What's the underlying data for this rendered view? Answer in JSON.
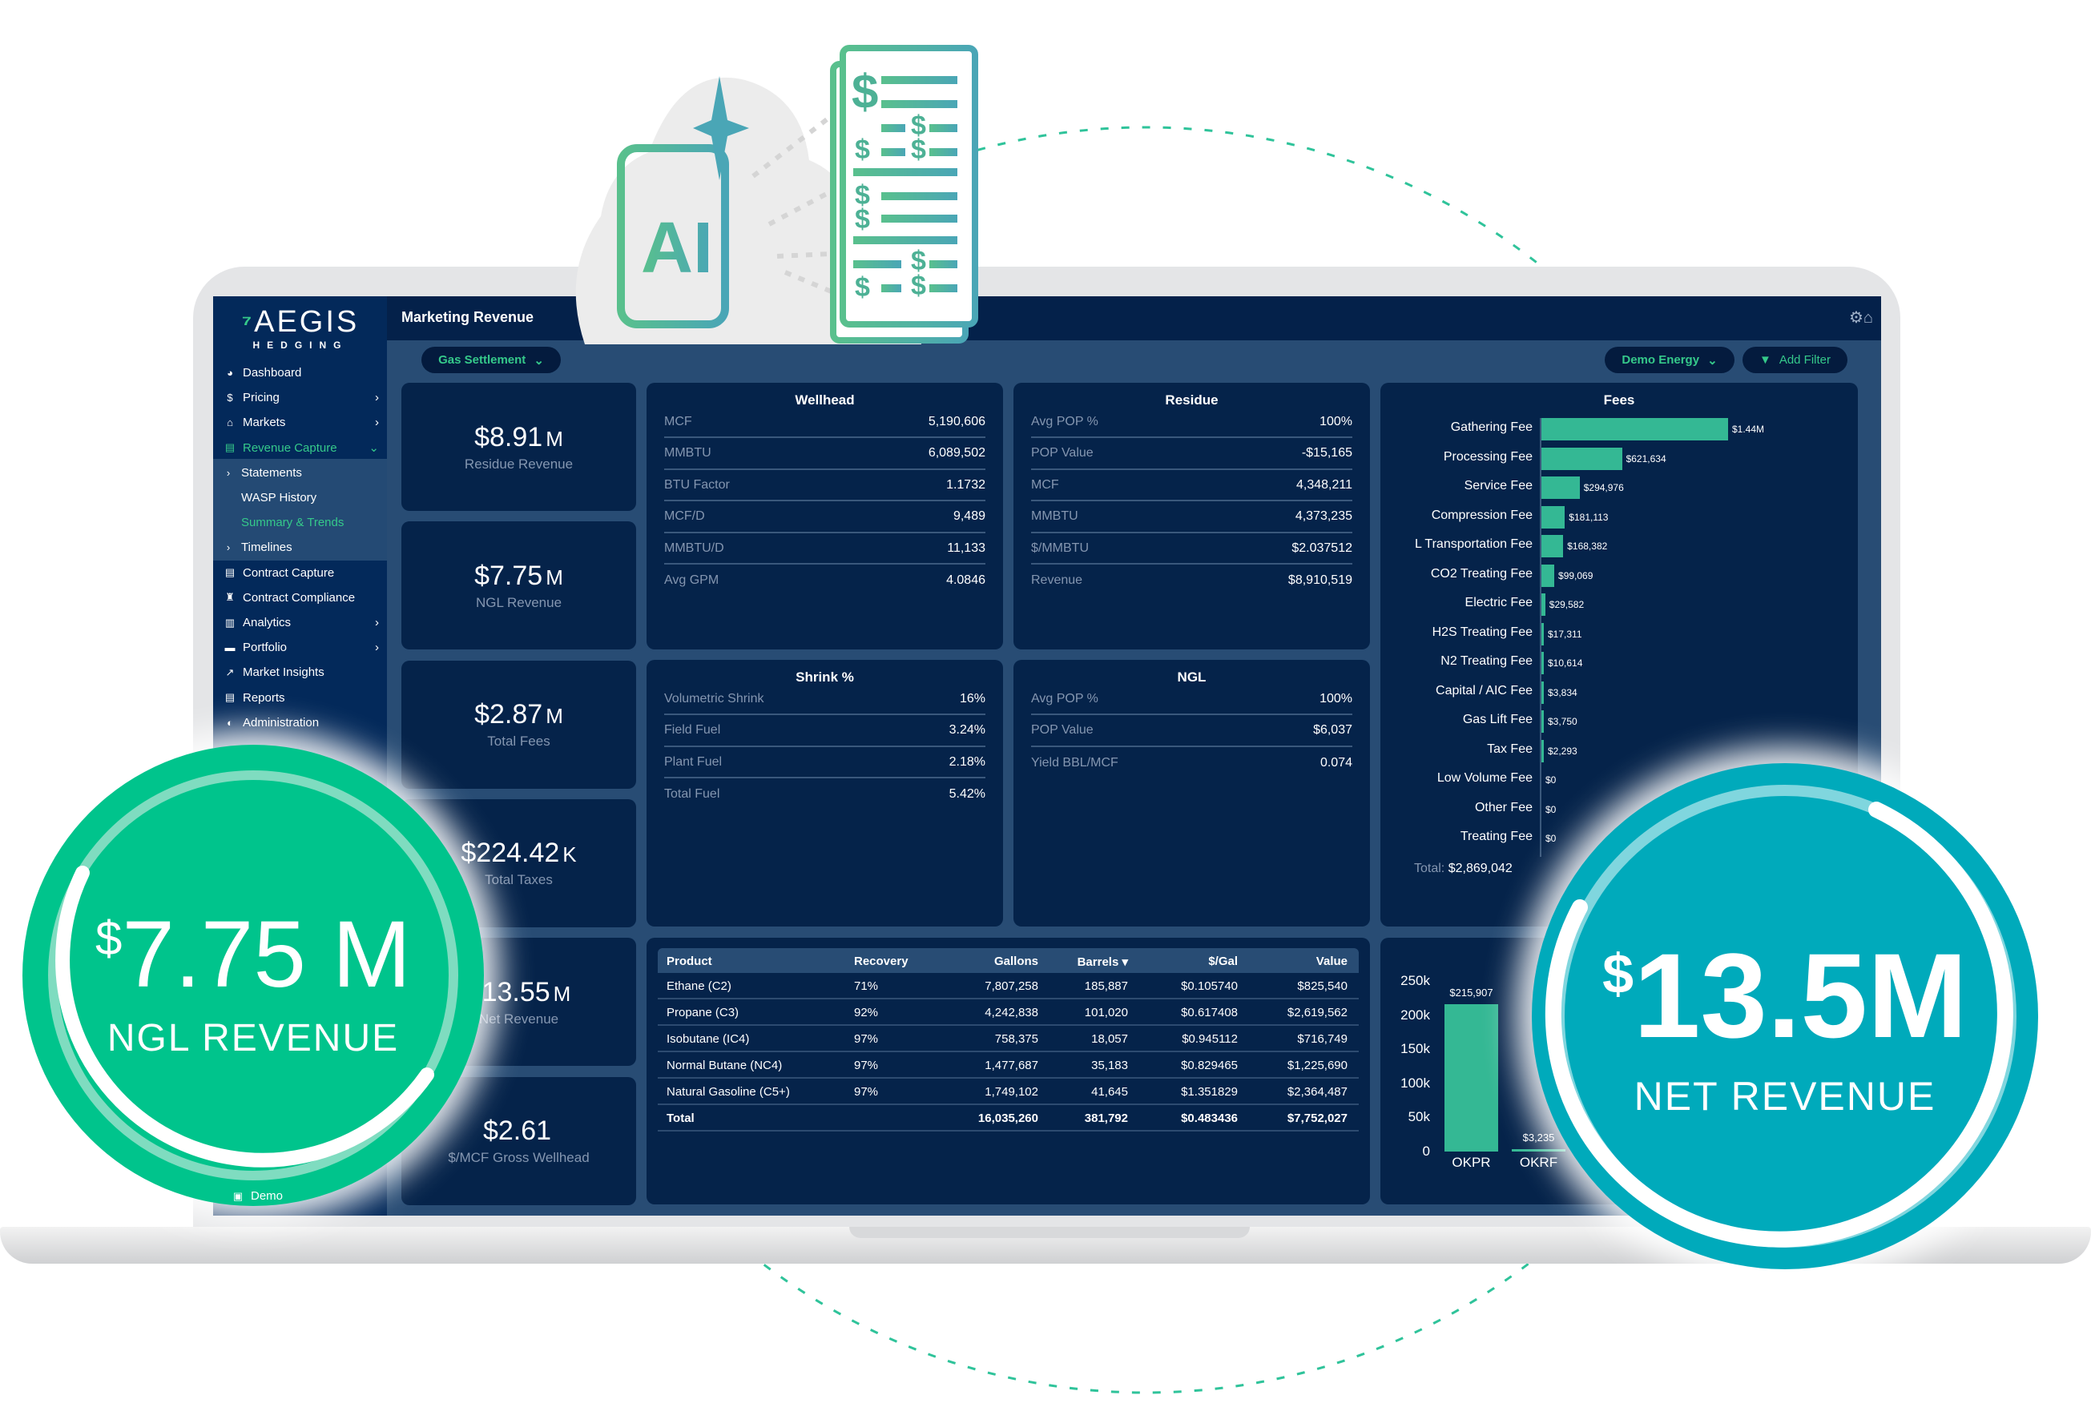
{
  "app": {
    "logo_text": "AEGIS",
    "logo_sub": "HEDGING",
    "page_title": "Marketing Revenue"
  },
  "filters": {
    "settlement": "Gas Settlement",
    "company": "Demo Energy",
    "add_filter": "Add Filter"
  },
  "sidebar": {
    "items": [
      {
        "label": "Dashboard",
        "icon": "dashboard-icon",
        "glyph": "◕",
        "chev": ""
      },
      {
        "label": "Pricing",
        "icon": "dollar-icon",
        "glyph": "$",
        "chev": "›"
      },
      {
        "label": "Markets",
        "icon": "bank-icon",
        "glyph": "⌂",
        "chev": "›"
      },
      {
        "label": "Revenue Capture",
        "icon": "file-dollar-icon",
        "glyph": "▤",
        "chev": "⌄",
        "active": true
      },
      {
        "label": "Statements",
        "sub": true,
        "glyph": "›"
      },
      {
        "label": "WASP History",
        "sub": true,
        "glyph": ""
      },
      {
        "label": "Summary & Trends",
        "sub": true,
        "glyph": "",
        "active": true
      },
      {
        "label": "Timelines",
        "sub": true,
        "glyph": "›"
      },
      {
        "label": "Contract Capture",
        "icon": "contract-icon",
        "glyph": "▤",
        "chev": ""
      },
      {
        "label": "Contract Compliance",
        "icon": "compliance-icon",
        "glyph": "♜",
        "chev": ""
      },
      {
        "label": "Analytics",
        "icon": "analytics-icon",
        "glyph": "▥",
        "chev": "›"
      },
      {
        "label": "Portfolio",
        "icon": "briefcase-icon",
        "glyph": "▬",
        "chev": "›"
      },
      {
        "label": "Market Insights",
        "icon": "line-chart-icon",
        "glyph": "↗",
        "chev": ""
      },
      {
        "label": "Reports",
        "icon": "report-icon",
        "glyph": "▤",
        "chev": ""
      },
      {
        "label": "Administration",
        "icon": "shield-icon",
        "glyph": "◐",
        "chev": ""
      }
    ],
    "bottom_item": "Demo"
  },
  "kpis": [
    {
      "value": "$8.91",
      "unit": "M",
      "label": "Residue Revenue"
    },
    {
      "value": "$7.75",
      "unit": "M",
      "label": "NGL Revenue"
    },
    {
      "value": "$2.87",
      "unit": "M",
      "label": "Total Fees"
    },
    {
      "value": "$224.42",
      "unit": "K",
      "label": "Total Taxes"
    },
    {
      "value": "$13.55",
      "unit": "M",
      "label": "Net Revenue"
    },
    {
      "value": "$2.61",
      "unit": "",
      "label": "$/MCF Gross Wellhead"
    }
  ],
  "panels": {
    "wellhead": {
      "title": "Wellhead",
      "rows": [
        [
          "MCF",
          "5,190,606"
        ],
        [
          "MMBTU",
          "6,089,502"
        ],
        [
          "BTU Factor",
          "1.1732"
        ],
        [
          "MCF/D",
          "9,489"
        ],
        [
          "MMBTU/D",
          "11,133"
        ],
        [
          "Avg GPM",
          "4.0846"
        ]
      ]
    },
    "residue": {
      "title": "Residue",
      "rows": [
        [
          "Avg POP %",
          "100%"
        ],
        [
          "POP Value",
          "-$15,165"
        ],
        [
          "MCF",
          "4,348,211"
        ],
        [
          "MMBTU",
          "4,373,235"
        ],
        [
          "$/MMBTU",
          "$2.037512"
        ],
        [
          "Revenue",
          "$8,910,519"
        ]
      ]
    },
    "shrink": {
      "title": "Shrink %",
      "rows": [
        [
          "Volumetric Shrink",
          "16%"
        ],
        [
          "Field Fuel",
          "3.24%"
        ],
        [
          "Plant Fuel",
          "2.18%"
        ],
        [
          "Total Fuel",
          "5.42%"
        ]
      ]
    },
    "ngl": {
      "title": "NGL",
      "rows": [
        [
          "Avg POP %",
          "100%"
        ],
        [
          "POP Value",
          "$6,037"
        ],
        [
          "Yield BBL/MCF",
          "0.074"
        ]
      ]
    }
  },
  "products": {
    "headers": [
      "Product",
      "Recovery",
      "Gallons",
      "Barrels ▾",
      "$/Gal",
      "Value"
    ],
    "rows": [
      [
        "Ethane (C2)",
        "71%",
        "7,807,258",
        "185,887",
        "$0.105740",
        "$825,540"
      ],
      [
        "Propane (C3)",
        "92%",
        "4,242,838",
        "101,020",
        "$0.617408",
        "$2,619,562"
      ],
      [
        "Isobutane (IC4)",
        "97%",
        "758,375",
        "18,057",
        "$0.945112",
        "$716,749"
      ],
      [
        "Normal Butane (NC4)",
        "97%",
        "1,477,687",
        "35,183",
        "$0.829465",
        "$1,225,690"
      ],
      [
        "Natural Gasoline (C5+)",
        "97%",
        "1,749,102",
        "41,645",
        "$1.351829",
        "$2,364,487"
      ]
    ],
    "total": [
      "Total",
      "",
      "16,035,260",
      "381,792",
      "$0.483436",
      "$7,752,027"
    ]
  },
  "chart_data": [
    {
      "type": "bar",
      "orientation": "horizontal",
      "title": "Fees",
      "categories": [
        "Gathering Fee",
        "Processing Fee",
        "Service Fee",
        "Compression Fee",
        "L Transportation Fee",
        "CO2 Treating Fee",
        "Electric Fee",
        "H2S Treating Fee",
        "N2 Treating Fee",
        "Capital / AIC Fee",
        "Gas Lift Fee",
        "Tax Fee",
        "Low Volume Fee",
        "Other Fee",
        "Treating Fee"
      ],
      "values": [
        1440000,
        621634,
        294976,
        181113,
        168382,
        99069,
        29582,
        17311,
        10614,
        3834,
        3750,
        2293,
        0,
        0,
        0
      ],
      "data_labels": [
        "$1.44M",
        "$621,634",
        "$294,976",
        "$181,113",
        "$168,382",
        "$99,069",
        "$29,582",
        "$17,311",
        "$10,614",
        "$3,834",
        "$3,750",
        "$2,293",
        "$0",
        "$0",
        "$0"
      ],
      "total_label": "Total:",
      "total_value": "$2,869,042",
      "color": "#34b894"
    },
    {
      "type": "bar",
      "categories": [
        "OKPR",
        "OKRF"
      ],
      "values": [
        215907,
        3235
      ],
      "data_labels": [
        "$215,907",
        "$3,235"
      ],
      "ylim": [
        0,
        250000
      ],
      "yticks": [
        "0",
        "50k",
        "100k",
        "150k",
        "200k",
        "250k"
      ],
      "color": "#34b894"
    }
  ],
  "callouts": {
    "ngl": {
      "currency": "$",
      "value": "7.75 M",
      "label": "NGL REVENUE",
      "color": "#00c48c"
    },
    "net": {
      "currency": "$",
      "value": "13.5M",
      "label": "NET REVENUE",
      "color": "#00aabb"
    }
  },
  "colors": {
    "accent": "#35c98a",
    "sidebar": "#03295a",
    "card": "#05234a",
    "main": "#284c74"
  }
}
